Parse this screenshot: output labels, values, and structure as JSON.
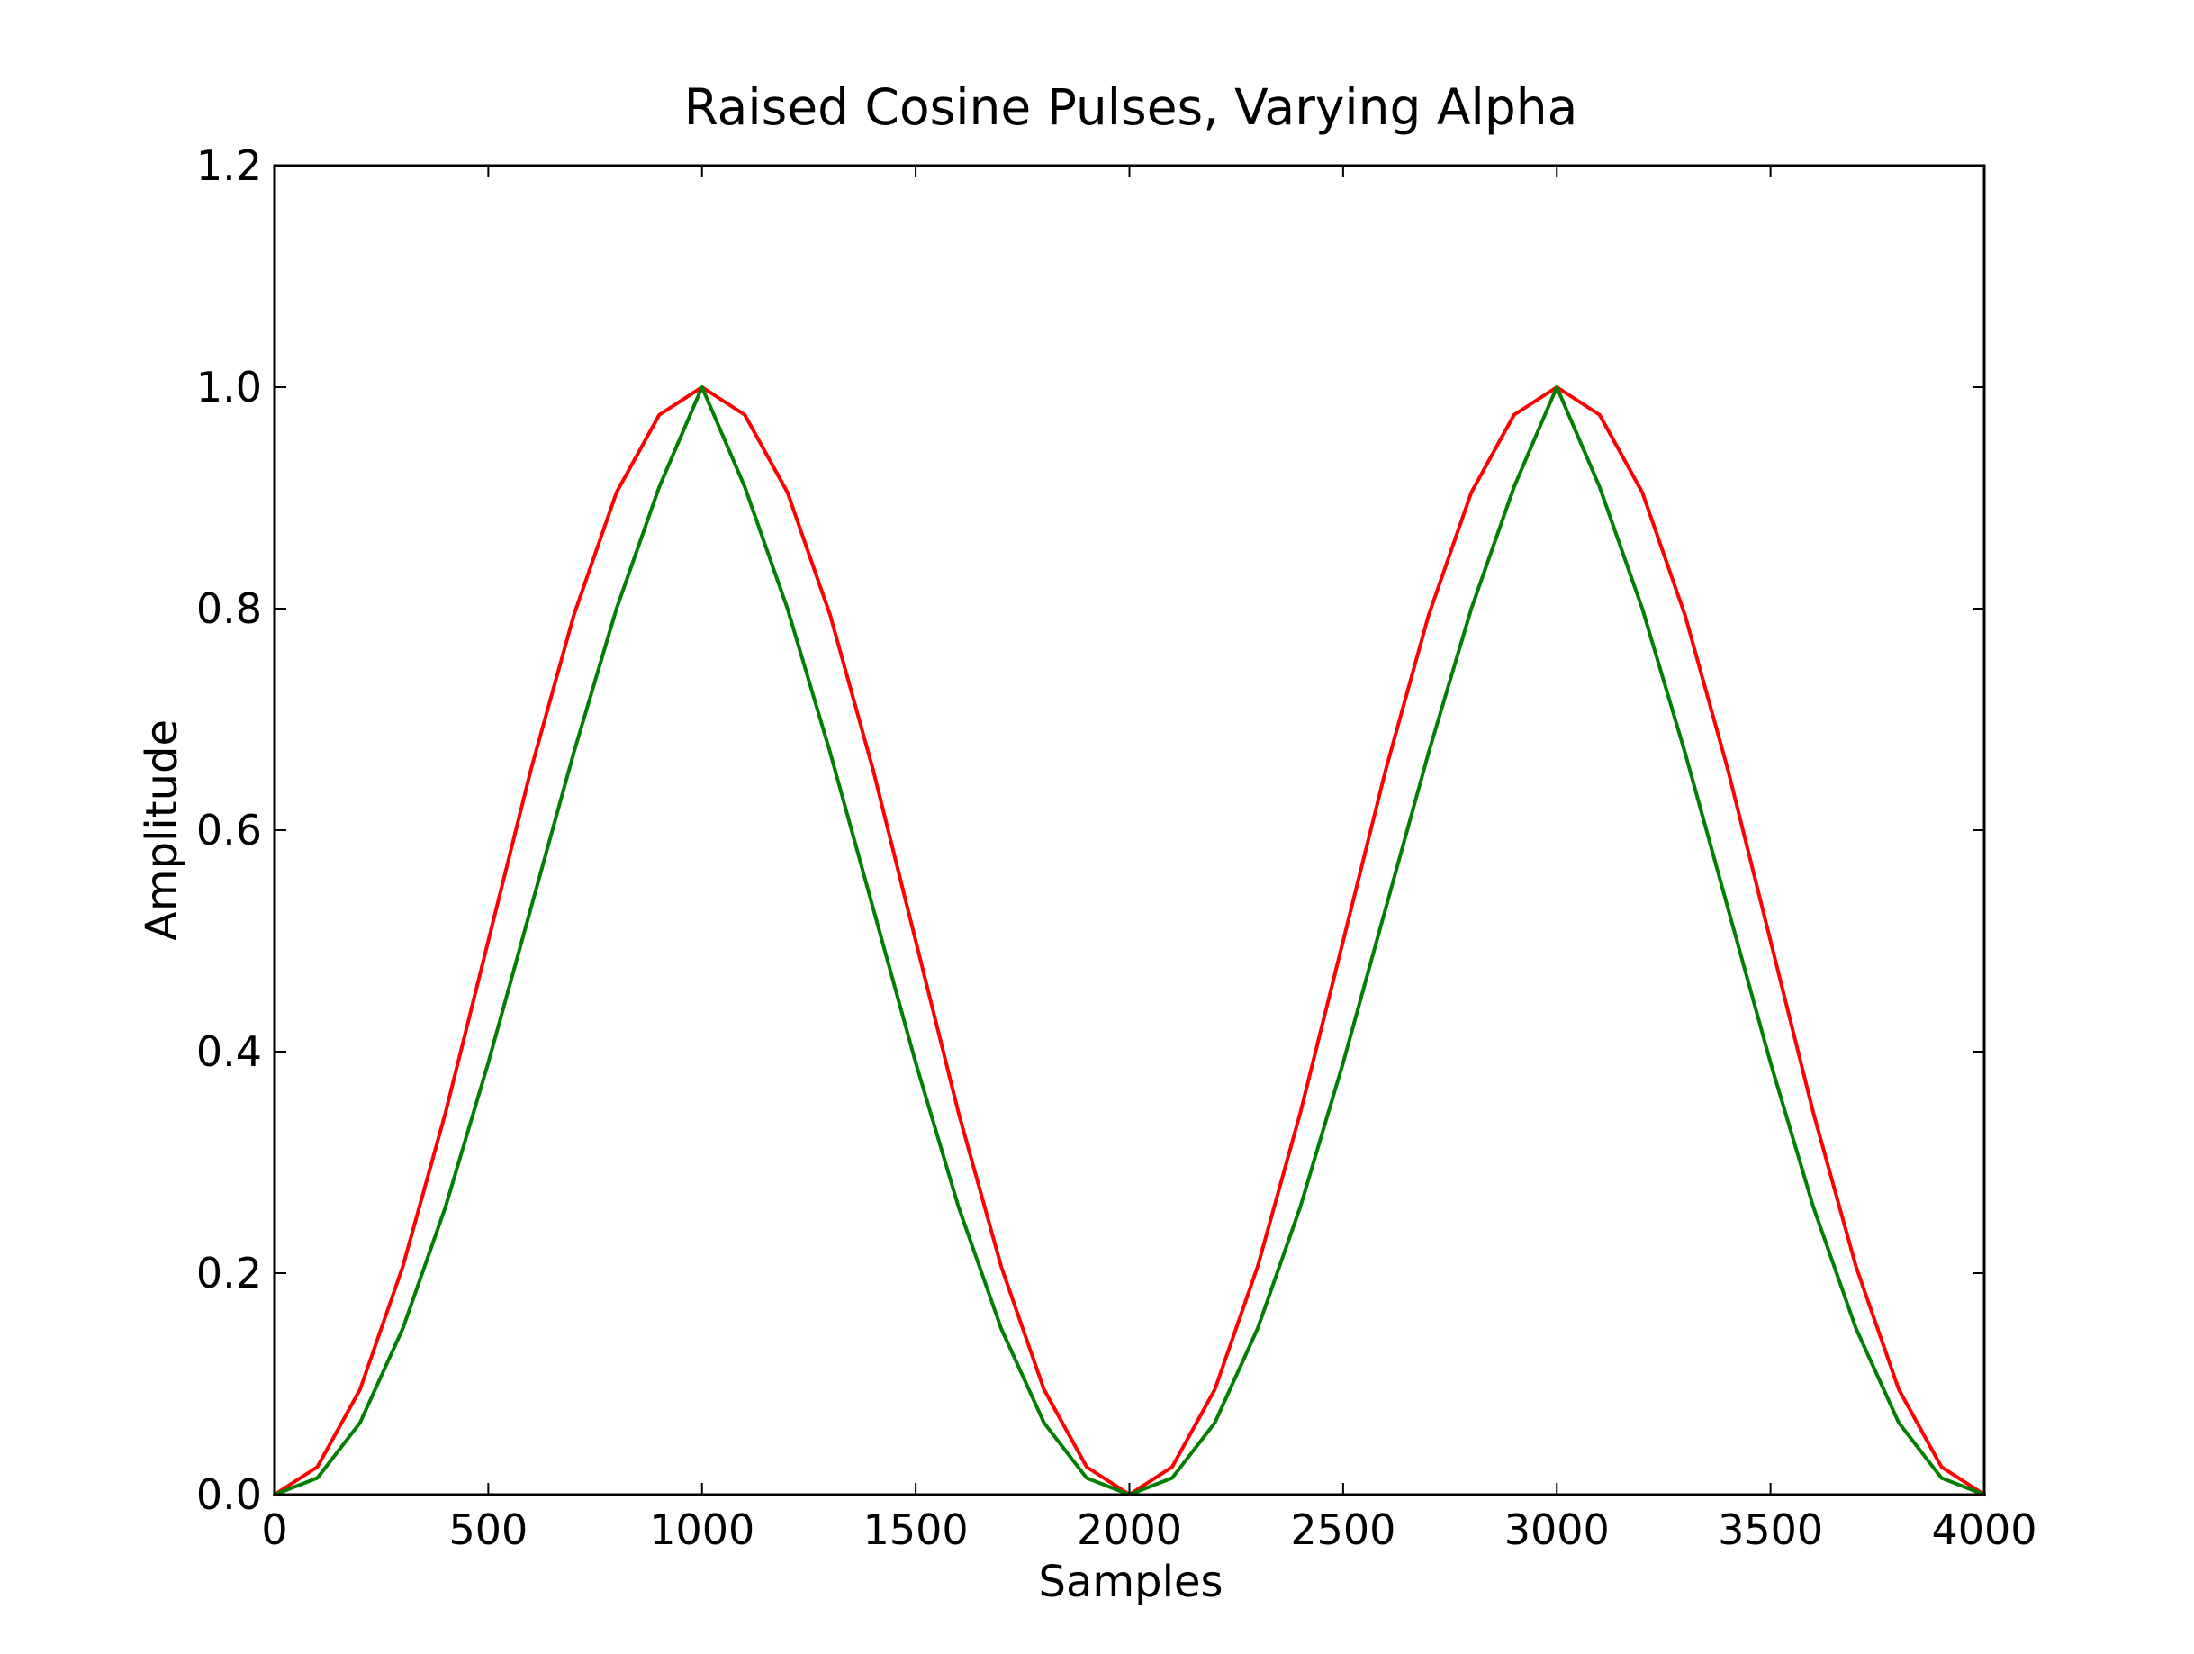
{
  "chart_data": {
    "type": "line",
    "title": "Raised Cosine Pulses, Varying Alpha",
    "xlabel": "Samples",
    "ylabel": "Amplitude",
    "xlim": [
      0,
      4000
    ],
    "ylim": [
      0,
      1.2
    ],
    "x_ticks": [
      "0",
      "500",
      "1000",
      "1500",
      "2000",
      "2500",
      "3000",
      "3500",
      "4000"
    ],
    "y_ticks": [
      "0.0",
      "0.2",
      "0.4",
      "0.6",
      "0.8",
      "1.0",
      "1.2"
    ],
    "grid": false,
    "legend": "none",
    "series": [
      {
        "color": "#ff0000",
        "x": [
          0,
          100,
          200,
          300,
          400,
          500,
          600,
          700,
          800,
          900,
          1000,
          1100,
          1200,
          1300,
          1400,
          1500,
          1600,
          1700,
          1800,
          1900,
          2000,
          2100,
          2200,
          2300,
          2400,
          2500,
          2600,
          2700,
          2800,
          2900,
          3000,
          3100,
          3200,
          3300,
          3400,
          3500,
          3600,
          3700,
          3800,
          3900,
          4000
        ],
        "values": [
          0.0,
          0.025,
          0.095,
          0.206,
          0.345,
          0.5,
          0.655,
          0.794,
          0.905,
          0.975,
          1.0,
          0.975,
          0.905,
          0.794,
          0.655,
          0.5,
          0.345,
          0.206,
          0.095,
          0.025,
          0.0,
          0.025,
          0.095,
          0.206,
          0.345,
          0.5,
          0.655,
          0.794,
          0.905,
          0.975,
          1.0,
          0.975,
          0.905,
          0.794,
          0.655,
          0.5,
          0.345,
          0.206,
          0.095,
          0.025,
          0.0
        ]
      },
      {
        "color": "#007f00",
        "x": [
          0,
          100,
          200,
          300,
          400,
          500,
          600,
          700,
          800,
          900,
          1000,
          1100,
          1200,
          1300,
          1400,
          1500,
          1600,
          1700,
          1800,
          1900,
          2000,
          2100,
          2200,
          2300,
          2400,
          2500,
          2600,
          2700,
          2800,
          2900,
          3000,
          3100,
          3200,
          3300,
          3400,
          3500,
          3600,
          3700,
          3800,
          3900,
          4000
        ],
        "values": [
          0.0,
          0.015,
          0.065,
          0.15,
          0.26,
          0.39,
          0.53,
          0.67,
          0.8,
          0.91,
          1.0,
          0.91,
          0.8,
          0.67,
          0.53,
          0.39,
          0.26,
          0.15,
          0.065,
          0.015,
          0.0,
          0.015,
          0.065,
          0.15,
          0.26,
          0.39,
          0.53,
          0.67,
          0.8,
          0.91,
          1.0,
          0.91,
          0.8,
          0.67,
          0.53,
          0.39,
          0.26,
          0.15,
          0.065,
          0.015,
          0.0
        ]
      }
    ]
  }
}
